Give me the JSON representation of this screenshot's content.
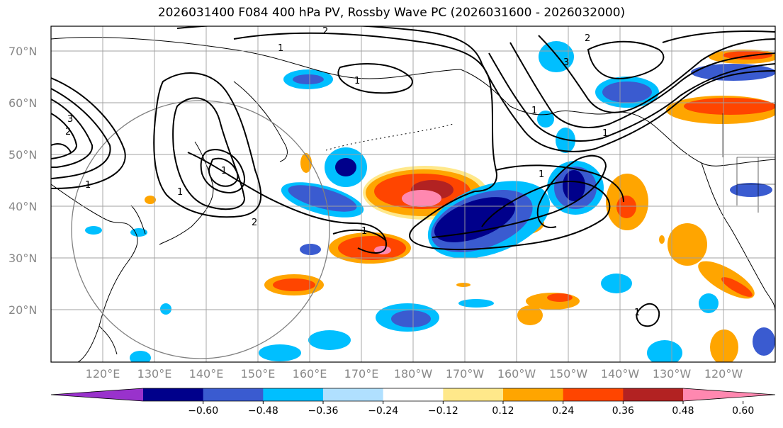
{
  "title": "2026031400 F084 400 hPa PV, Rossby Wave PC (2026031600 - 2026032000)",
  "lat_labels": [
    "70°N",
    "60°N",
    "50°N",
    "40°N",
    "30°N",
    "20°N"
  ],
  "lon_labels": [
    "120°E",
    "130°E",
    "140°E",
    "150°E",
    "160°E",
    "170°E",
    "180°W",
    "170°W",
    "160°W",
    "150°W",
    "140°W",
    "130°W",
    "120°W"
  ],
  "contour_labels": [
    "2",
    "1",
    "3",
    "2",
    "1",
    "1",
    "1",
    "1",
    "3",
    "1",
    "2",
    "1",
    "1",
    "1",
    "2",
    "1"
  ],
  "colorbar": {
    "tick_labels": [
      "−0.60",
      "−0.48",
      "−0.36",
      "−0.24",
      "−0.12",
      "0.12",
      "0.24",
      "0.36",
      "0.48",
      "0.60"
    ],
    "colors": [
      "#9932cc",
      "#00008b",
      "#3a5bd0",
      "#00bfff",
      "#b0e0ff",
      "#ffffff",
      "#ffe88a",
      "#ffa500",
      "#ff4500",
      "#b22222",
      "#ff88b0"
    ]
  },
  "chart_data": {
    "type": "heatmap",
    "title": "2026031400 F084 400 hPa PV, Rossby Wave PC (2026031600 - 2026032000)",
    "lon_range": [
      "113°E",
      "115°W"
    ],
    "lat_range": [
      10,
      75
    ],
    "levels": [
      -0.6,
      -0.48,
      -0.36,
      -0.24,
      -0.12,
      0.12,
      0.24,
      0.36,
      0.48,
      0.6
    ],
    "grid": true,
    "contour_values": [
      1,
      2,
      3
    ],
    "colorbar_position": "bottom"
  }
}
